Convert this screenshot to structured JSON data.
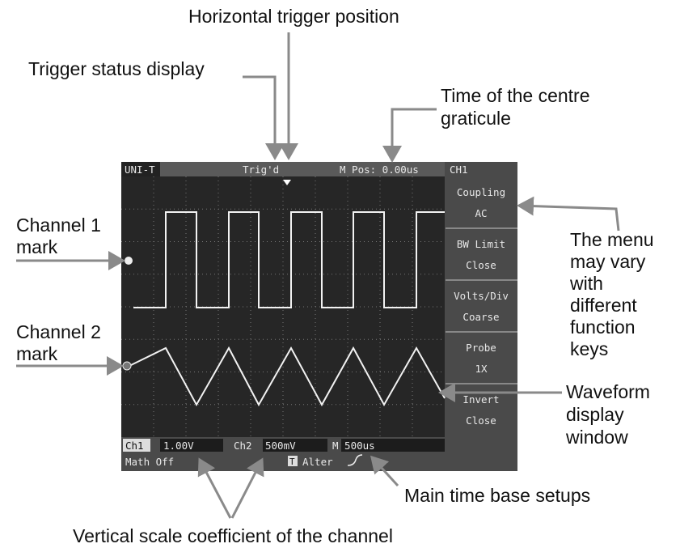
{
  "annotations": {
    "horizontal_trigger": [
      "Horizontal trigger position"
    ],
    "trigger_status": [
      "Trigger status display"
    ],
    "centre_time": [
      "Time of the centre",
      "graticule"
    ],
    "channel1_mark": [
      "Channel 1",
      "mark"
    ],
    "channel2_mark": [
      "Channel 2",
      "mark"
    ],
    "menu_note": [
      "The menu",
      "may vary",
      "with",
      "different",
      "function",
      "keys"
    ],
    "waveform_window": [
      "Waveform",
      "display",
      "window"
    ],
    "time_base": [
      "Main time base setups"
    ],
    "vertical_scale": [
      "Vertical scale coefficient of the channel"
    ]
  },
  "screen": {
    "top_bar": {
      "brand": "UNI-T",
      "trigger_status": "Trig'd",
      "position": "M Pos: 0.00us",
      "channel": "CH1"
    },
    "menu": [
      {
        "label": "Coupling",
        "value": "AC"
      },
      {
        "label": "BW  Limit",
        "value": "Close"
      },
      {
        "label": "Volts/Div",
        "value": "Coarse"
      },
      {
        "label": "Probe",
        "value": "1X"
      },
      {
        "label": "Invert",
        "value": "Close"
      }
    ],
    "bottom_bar": {
      "ch1": "Ch1",
      "ch1_scale": "1.00V",
      "ch2": "Ch2",
      "ch2_scale": "500mV",
      "timebase": "M 500us",
      "math": "Math Off",
      "trigger_icon": "T",
      "trigger_mode": "Alter"
    }
  }
}
